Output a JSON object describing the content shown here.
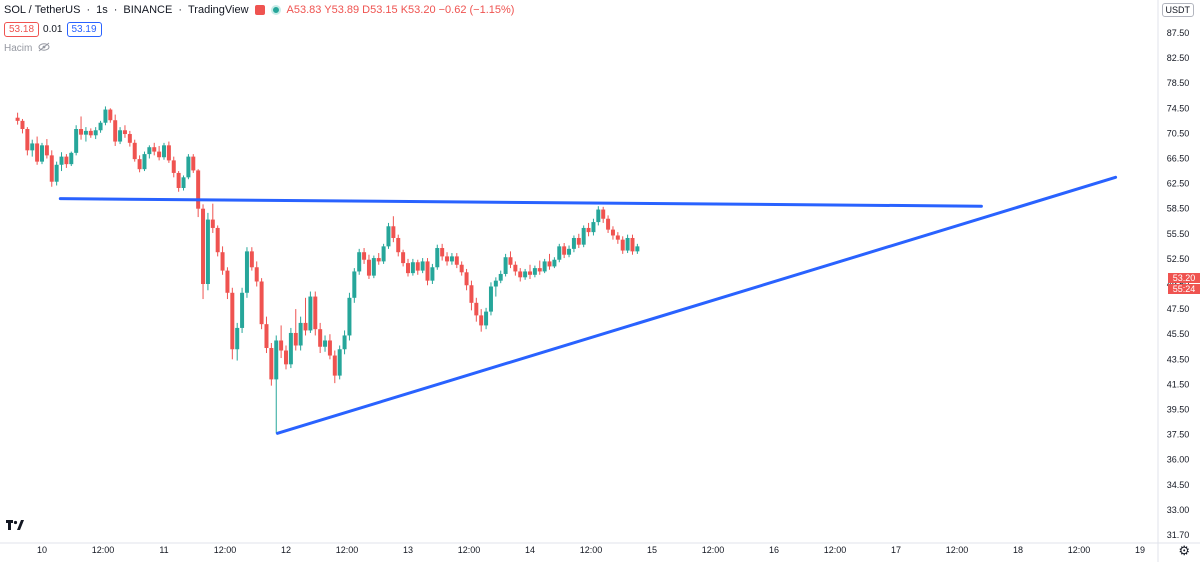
{
  "header": {
    "symbol": "SOL / TetherUS",
    "interval": "1s",
    "exchange": "BINANCE",
    "source": "TradingView",
    "ohlc": "A53.83 Y53.89 D53.15 K53.20 −0.62 (−1.15%)",
    "bid": "53.18",
    "spread": "0.01",
    "ask": "53.19",
    "volume_label": "Hacim"
  },
  "currency_button": "USDT",
  "last_price": "53.20",
  "countdown": "55:24",
  "colors": {
    "up": "#26a69a",
    "down": "#ef5350",
    "trendline": "#2962ff",
    "axis_text": "#131722"
  },
  "icons": [
    "market-open-icon",
    "eye-off-icon",
    "tradingview-logo-icon",
    "settings-gear-icon"
  ],
  "chart_data": {
    "type": "candlestick",
    "y_ticks": [
      "87.50",
      "82.50",
      "78.50",
      "74.50",
      "70.50",
      "66.50",
      "62.50",
      "58.50",
      "55.50",
      "52.50",
      "49.50",
      "47.50",
      "45.50",
      "43.50",
      "41.50",
      "39.50",
      "37.50",
      "36.00",
      "34.50",
      "33.00",
      "31.70"
    ],
    "x_ticks": [
      "10",
      "12:00",
      "11",
      "12:00",
      "12",
      "12:00",
      "13",
      "12:00",
      "14",
      "12:00",
      "15",
      "12:00",
      "16",
      "12:00",
      "17",
      "12:00",
      "18",
      "12:00",
      "19"
    ],
    "x_range_days": [
      9.8,
      19.07
    ],
    "trendlines": [
      {
        "from": [
          10.15,
          60.1
        ],
        "to": [
          17.7,
          58.9
        ]
      },
      {
        "from": [
          11.93,
          37.6
        ],
        "to": [
          18.8,
          63.5
        ]
      }
    ],
    "candles": [
      [
        9.8,
        73.0,
        73.8,
        71.9,
        72.5
      ],
      [
        9.84,
        72.5,
        72.8,
        70.5,
        71.2
      ],
      [
        9.88,
        71.2,
        71.5,
        67.0,
        67.8
      ],
      [
        9.92,
        67.8,
        69.5,
        66.8,
        68.9
      ],
      [
        9.96,
        68.9,
        70.0,
        65.5,
        66.0
      ],
      [
        10.0,
        66.0,
        69.0,
        65.6,
        68.6
      ],
      [
        10.04,
        68.6,
        69.6,
        66.5,
        67.0
      ],
      [
        10.08,
        67.0,
        67.8,
        62.0,
        62.8
      ],
      [
        10.12,
        62.8,
        66.0,
        62.2,
        65.5
      ],
      [
        10.16,
        65.5,
        67.5,
        64.5,
        66.8
      ],
      [
        10.2,
        66.8,
        67.2,
        65.0,
        65.6
      ],
      [
        10.24,
        65.6,
        67.6,
        65.3,
        67.4
      ],
      [
        10.28,
        67.4,
        71.8,
        67.0,
        71.2
      ],
      [
        10.32,
        71.2,
        73.2,
        69.5,
        70.3
      ],
      [
        10.36,
        70.3,
        71.5,
        69.2,
        70.9
      ],
      [
        10.4,
        70.9,
        71.3,
        69.8,
        70.2
      ],
      [
        10.44,
        70.2,
        71.5,
        69.6,
        71.0
      ],
      [
        10.48,
        71.0,
        72.5,
        70.6,
        72.2
      ],
      [
        10.52,
        72.2,
        74.8,
        71.8,
        74.3
      ],
      [
        10.56,
        74.3,
        74.5,
        72.2,
        72.6
      ],
      [
        10.6,
        72.6,
        73.5,
        68.5,
        69.2
      ],
      [
        10.64,
        69.2,
        71.5,
        68.8,
        71.0
      ],
      [
        10.68,
        71.0,
        71.8,
        69.8,
        70.4
      ],
      [
        10.72,
        70.4,
        70.9,
        68.4,
        69.0
      ],
      [
        10.76,
        69.0,
        69.5,
        66.0,
        66.4
      ],
      [
        10.8,
        66.4,
        67.0,
        64.3,
        64.8
      ],
      [
        10.84,
        64.8,
        67.6,
        64.5,
        67.2
      ],
      [
        10.88,
        67.2,
        68.6,
        66.5,
        68.3
      ],
      [
        10.92,
        68.3,
        69.0,
        67.0,
        67.6
      ],
      [
        10.96,
        67.6,
        68.5,
        66.2,
        66.7
      ],
      [
        11.0,
        66.7,
        69.0,
        66.3,
        68.6
      ],
      [
        11.04,
        68.6,
        69.2,
        65.8,
        66.2
      ],
      [
        11.08,
        66.2,
        66.8,
        63.5,
        64.2
      ],
      [
        11.12,
        64.2,
        64.5,
        61.2,
        61.8
      ],
      [
        11.16,
        61.8,
        63.8,
        61.4,
        63.5
      ],
      [
        11.2,
        63.5,
        67.2,
        63.2,
        66.8
      ],
      [
        11.24,
        66.8,
        67.2,
        64.2,
        64.6
      ],
      [
        11.28,
        64.6,
        64.8,
        57.5,
        58.5
      ],
      [
        11.32,
        58.5,
        59.2,
        48.3,
        49.5
      ],
      [
        11.36,
        49.5,
        58.0,
        49.0,
        57.2
      ],
      [
        11.4,
        57.2,
        59.3,
        55.6,
        56.2
      ],
      [
        11.44,
        56.2,
        56.5,
        52.8,
        53.3
      ],
      [
        11.48,
        53.3,
        54.0,
        50.6,
        51.1
      ],
      [
        11.52,
        51.1,
        51.5,
        48.3,
        48.8
      ],
      [
        11.56,
        48.8,
        49.2,
        43.5,
        44.3
      ],
      [
        11.6,
        44.3,
        46.4,
        43.4,
        46.0
      ],
      [
        11.64,
        46.0,
        49.2,
        45.6,
        48.8
      ],
      [
        11.68,
        48.8,
        53.9,
        48.4,
        53.4
      ],
      [
        11.72,
        53.4,
        53.9,
        51.1,
        51.5
      ],
      [
        11.76,
        51.5,
        52.2,
        49.3,
        49.8
      ],
      [
        11.8,
        49.8,
        50.2,
        45.9,
        46.3
      ],
      [
        11.84,
        46.3,
        46.9,
        44.0,
        44.4
      ],
      [
        11.88,
        44.4,
        44.8,
        41.4,
        41.9
      ],
      [
        11.92,
        41.9,
        45.4,
        37.6,
        45.0
      ],
      [
        11.96,
        45.0,
        46.2,
        43.6,
        44.2
      ],
      [
        12.0,
        44.2,
        44.6,
        42.7,
        43.1
      ],
      [
        12.04,
        43.1,
        46.0,
        42.8,
        45.6
      ],
      [
        12.08,
        45.6,
        47.5,
        44.2,
        44.6
      ],
      [
        12.12,
        44.6,
        46.9,
        44.2,
        46.4
      ],
      [
        12.16,
        46.4,
        48.4,
        45.4,
        45.8
      ],
      [
        12.2,
        45.8,
        48.9,
        45.6,
        48.5
      ],
      [
        12.24,
        48.5,
        48.9,
        45.4,
        45.9
      ],
      [
        12.28,
        45.9,
        46.4,
        44.0,
        44.5
      ],
      [
        12.32,
        44.5,
        45.4,
        44.1,
        45.0
      ],
      [
        12.36,
        45.0,
        45.5,
        43.5,
        43.8
      ],
      [
        12.4,
        43.8,
        44.2,
        41.6,
        42.2
      ],
      [
        12.44,
        42.2,
        44.6,
        41.9,
        44.3
      ],
      [
        12.48,
        44.3,
        45.8,
        43.9,
        45.4
      ],
      [
        12.52,
        45.4,
        48.8,
        45.0,
        48.4
      ],
      [
        12.56,
        48.4,
        51.4,
        48.0,
        51.0
      ],
      [
        12.6,
        51.0,
        53.7,
        50.6,
        53.3
      ],
      [
        12.64,
        53.3,
        53.8,
        51.9,
        52.4
      ],
      [
        12.68,
        52.4,
        53.0,
        50.1,
        50.5
      ],
      [
        12.72,
        50.5,
        52.9,
        50.2,
        52.6
      ],
      [
        12.76,
        52.6,
        53.2,
        51.8,
        52.2
      ],
      [
        12.8,
        52.2,
        54.3,
        51.9,
        54.0
      ],
      [
        12.84,
        54.0,
        56.8,
        53.7,
        56.4
      ],
      [
        12.88,
        56.4,
        57.6,
        54.5,
        55.0
      ],
      [
        12.92,
        55.0,
        55.4,
        52.8,
        53.3
      ],
      [
        12.96,
        53.3,
        53.6,
        51.6,
        52.0
      ],
      [
        13.0,
        52.0,
        52.5,
        50.4,
        50.8
      ],
      [
        13.04,
        50.8,
        52.5,
        50.5,
        52.1
      ],
      [
        13.08,
        52.1,
        52.4,
        50.6,
        51.1
      ],
      [
        13.12,
        51.1,
        52.6,
        50.8,
        52.2
      ],
      [
        13.16,
        52.2,
        52.6,
        49.4,
        49.9
      ],
      [
        13.2,
        49.9,
        51.9,
        49.5,
        51.5
      ],
      [
        13.24,
        51.5,
        54.2,
        51.2,
        53.8
      ],
      [
        13.28,
        53.8,
        54.3,
        52.3,
        52.8
      ],
      [
        13.32,
        52.8,
        53.3,
        51.7,
        52.2
      ],
      [
        13.36,
        52.2,
        53.2,
        51.8,
        52.8
      ],
      [
        13.4,
        52.8,
        53.2,
        51.4,
        51.8
      ],
      [
        13.44,
        51.8,
        52.2,
        50.5,
        50.9
      ],
      [
        13.48,
        50.9,
        51.3,
        49.0,
        49.4
      ],
      [
        13.52,
        49.4,
        49.9,
        47.4,
        48.0
      ],
      [
        13.56,
        48.0,
        48.4,
        46.5,
        47.0
      ],
      [
        13.6,
        47.0,
        47.5,
        45.7,
        46.2
      ],
      [
        13.64,
        46.2,
        47.6,
        45.9,
        47.3
      ],
      [
        13.68,
        47.3,
        49.7,
        47.0,
        49.3
      ],
      [
        13.72,
        49.3,
        50.3,
        48.5,
        49.9
      ],
      [
        13.76,
        49.9,
        51.1,
        49.6,
        50.7
      ],
      [
        13.8,
        50.7,
        53.1,
        50.4,
        52.7
      ],
      [
        13.84,
        52.7,
        53.4,
        51.4,
        51.8
      ],
      [
        13.88,
        51.8,
        52.2,
        50.5,
        51.0
      ],
      [
        13.92,
        51.0,
        51.4,
        49.8,
        50.3
      ],
      [
        13.96,
        50.3,
        51.3,
        50.0,
        51.0
      ],
      [
        14.0,
        51.0,
        51.8,
        50.1,
        50.6
      ],
      [
        14.04,
        50.6,
        51.7,
        50.3,
        51.4
      ],
      [
        14.08,
        51.4,
        52.3,
        50.6,
        51.0
      ],
      [
        14.12,
        51.0,
        52.5,
        50.8,
        52.2
      ],
      [
        14.16,
        52.2,
        53.1,
        51.2,
        51.6
      ],
      [
        14.2,
        51.6,
        52.7,
        51.4,
        52.4
      ],
      [
        14.24,
        52.4,
        54.3,
        52.1,
        54.0
      ],
      [
        14.28,
        54.0,
        54.4,
        52.6,
        53.0
      ],
      [
        14.32,
        53.0,
        54.1,
        52.7,
        53.7
      ],
      [
        14.36,
        53.7,
        55.3,
        53.3,
        55.0
      ],
      [
        14.4,
        55.0,
        55.5,
        53.8,
        54.2
      ],
      [
        14.44,
        54.2,
        56.5,
        53.9,
        56.2
      ],
      [
        14.48,
        56.2,
        56.8,
        55.2,
        55.7
      ],
      [
        14.52,
        55.7,
        57.3,
        55.3,
        56.9
      ],
      [
        14.56,
        56.9,
        58.9,
        56.5,
        58.4
      ],
      [
        14.6,
        58.4,
        58.8,
        56.8,
        57.3
      ],
      [
        14.64,
        57.3,
        57.7,
        55.6,
        56.0
      ],
      [
        14.68,
        56.0,
        56.4,
        54.8,
        55.3
      ],
      [
        14.72,
        55.3,
        55.7,
        54.3,
        54.8
      ],
      [
        14.76,
        54.8,
        55.2,
        53.1,
        53.5
      ],
      [
        14.8,
        53.5,
        55.4,
        53.2,
        55.0
      ],
      [
        14.84,
        55.0,
        55.4,
        53.0,
        53.4
      ],
      [
        14.88,
        53.4,
        54.3,
        53.1,
        54.0
      ]
    ]
  }
}
